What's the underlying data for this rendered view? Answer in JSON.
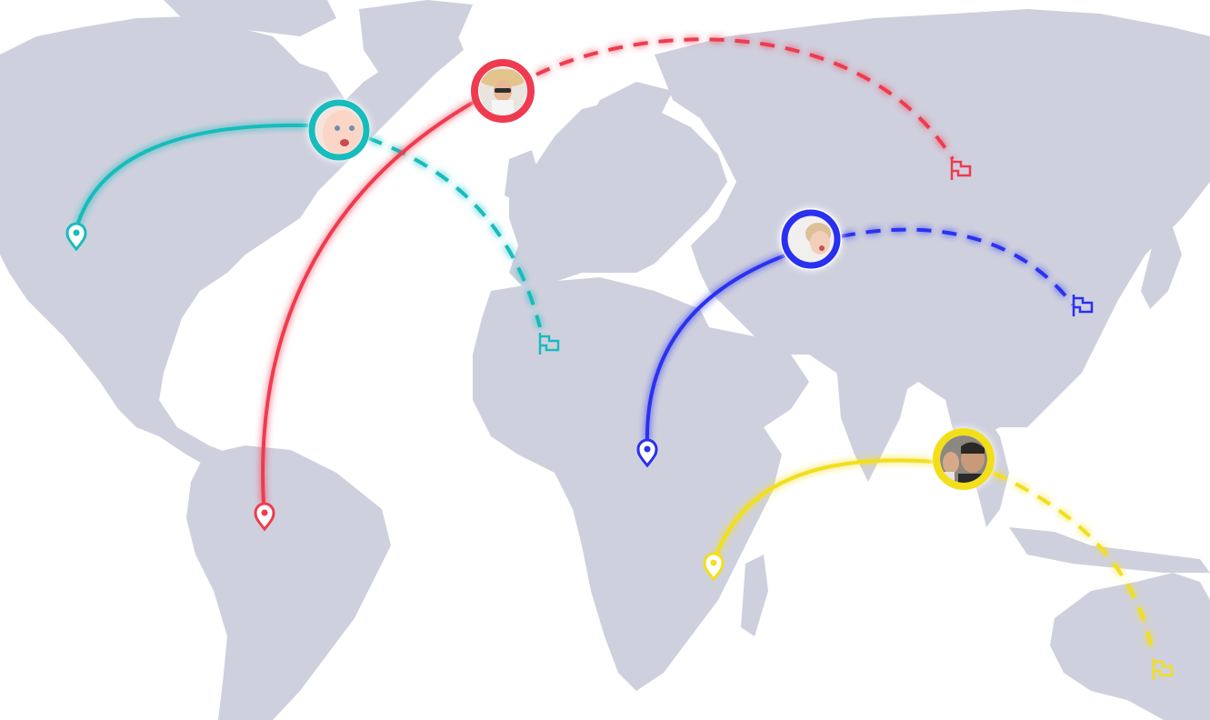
{
  "map": {
    "land_color": "#cfd0de",
    "ocean_color": "#ffffff"
  },
  "routes": [
    {
      "id": "teal",
      "color": "#18bcbc",
      "origin_icon": "map-pin-icon",
      "destination_icon": "flag-icon",
      "traveler_avatar": "baby-face-avatar",
      "style": "solid-then-dashed"
    },
    {
      "id": "red",
      "color": "#ef3b50",
      "origin_icon": "map-pin-icon",
      "destination_icon": "flag-icon",
      "traveler_avatar": "woman-with-sunhat-avatar",
      "style": "solid-then-dashed"
    },
    {
      "id": "blue",
      "color": "#2a30f0",
      "origin_icon": "map-pin-icon",
      "destination_icon": "flag-icon",
      "traveler_avatar": "girl-making-face-avatar",
      "style": "solid-then-dashed"
    },
    {
      "id": "yellow",
      "color": "#f2df1a",
      "origin_icon": "map-pin-icon",
      "destination_icon": "flag-icon",
      "traveler_avatar": "two-boys-selfie-avatar",
      "style": "solid-then-dashed"
    }
  ]
}
